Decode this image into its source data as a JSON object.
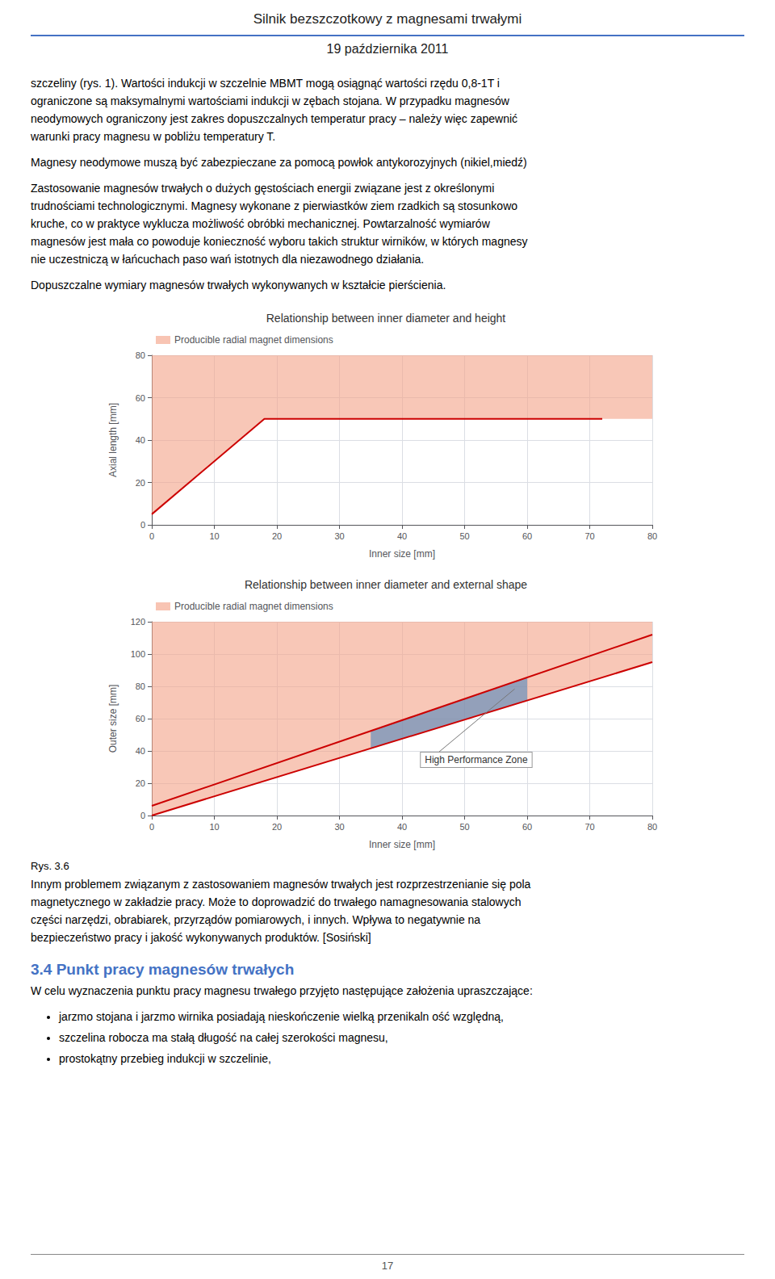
{
  "page_title": "Silnik bezszczotkowy z magnesami trwałymi",
  "page_subtitle": "19 października 2011",
  "header_line_color": "#4472c4",
  "paragraphs_before": [
    [
      "szczeliny (rys. 1). Wartości indukcji w szczelnie MBMT mogą osiągnąć wartości rzędu 0,8-1T i",
      "ograniczone są maksymalnymi wartościami indukcji w zębach stojana.  W przypadku magnesów",
      "neodymowych ograniczony jest zakres dopuszczalnych temperatur pracy – należy więc zapewnić",
      "warunki pracy magnesu w pobliżu temperatury T."
    ],
    [
      "Magnesy neodymowe muszą być zabezpieczane za pomocą powłok antykorozyjnych (nikiel,miedź)"
    ],
    [
      "Zastosowanie magnesów trwałych o dużych gęstościach energii związane jest z określonymi",
      "trudnościami technologicznymi. Magnesy wykonane z pierwiastków ziem rzadkich są stosunkowo",
      "kruche, co w praktyce wyklucza możliwość obróbki mechanicznej. Powtarzalność wymiarów",
      "magnesów jest mała co powoduje konieczność wyboru takich struktur wirników, w których magnesy",
      "nie uczestniczą w łańcuchach paso wań istotnych  dla niezawodnego działania."
    ],
    [
      "Dopuszczalne wymiary magnesów trwałych wykonywanych w kształcie pierścienia."
    ]
  ],
  "fig_caption": "Rys. 3.6",
  "paragraphs_after": [
    "Innym problemem związanym z zastosowaniem magnesów trwałych jest rozprzestrzenianie się pola",
    "magnetycznego w zakładzie pracy. Może to doprowadzić do trwałego namagnesowania stalowych",
    "części narzędzi, obrabiarek, przyrządów pomiarowych, i innych.  Wpływa to negatywnie na",
    "bezpieczeństwo pracy i jakość wykonywanych produktów. [Sosiński]"
  ],
  "section_title": "3.4  Punkt pracy magnesów trwałych",
  "section_paragraph": "W celu wyznaczenia punktu pracy magnesu trwałego przyjęto następujące założenia upraszczające:",
  "bullet_points": [
    "jarzmo stojana i jarzmo wirnika posiadają nieskończenie wielką przenikaln ość względną,",
    "szczelina robocza ma stałą długość na całej szerokości magnesu,",
    "prostokątny przebieg indukcji w szczelinie,"
  ],
  "page_number": "17",
  "chart_data": [
    {
      "type": "area",
      "title": "Relationship between inner diameter and height",
      "xlabel": "Inner size [mm]",
      "ylabel": "Axial length [mm]",
      "xlim": [
        0,
        80
      ],
      "ylim": [
        0,
        80
      ],
      "xticks": [
        0,
        10,
        20,
        30,
        40,
        50,
        60,
        70,
        80
      ],
      "yticks": [
        0,
        20,
        40,
        60,
        80
      ],
      "grid": true,
      "legend": "upper left",
      "series": [
        {
          "name": "Producible radial magnet dimensions",
          "type": "area",
          "color": "#f4a58a",
          "x": [
            0,
            18,
            72,
            80
          ],
          "lower": [
            5,
            50,
            50,
            50
          ],
          "upper": [
            80,
            80,
            80,
            80
          ]
        },
        {
          "type": "line",
          "color": "#cc0000",
          "x": [
            0,
            18,
            72
          ],
          "values": [
            5,
            50,
            50
          ]
        }
      ]
    },
    {
      "type": "area",
      "title": "Relationship between inner diameter and external shape",
      "xlabel": "Inner size [mm]",
      "ylabel": "Outer size [mm]",
      "xlim": [
        0,
        80
      ],
      "ylim": [
        0,
        120
      ],
      "xticks": [
        0,
        10,
        20,
        30,
        40,
        50,
        60,
        70,
        80
      ],
      "yticks": [
        0,
        20,
        40,
        60,
        80,
        100,
        120
      ],
      "grid": true,
      "legend": "upper left",
      "series": [
        {
          "name": "Producible radial magnet dimensions",
          "type": "area",
          "color": "#f4a58a",
          "x": [
            0,
            80
          ],
          "lower": [
            0,
            95
          ],
          "upper": [
            120,
            120
          ]
        },
        {
          "type": "area",
          "color": "#5588bb",
          "x": [
            35,
            60
          ],
          "lower": [
            41.5625,
            71.25
          ],
          "upper": [
            52.375,
            85.5
          ]
        },
        {
          "type": "line",
          "color": "#cc0000",
          "x": [
            0,
            80
          ],
          "values": [
            6,
            112
          ]
        },
        {
          "type": "line",
          "color": "#cc0000",
          "x": [
            0,
            80
          ],
          "values": [
            0,
            95
          ]
        }
      ],
      "annotations": [
        {
          "text": "High Performance Zone",
          "x": 43,
          "y": 30,
          "target_x": 58,
          "target_y": 78.375
        }
      ]
    }
  ]
}
